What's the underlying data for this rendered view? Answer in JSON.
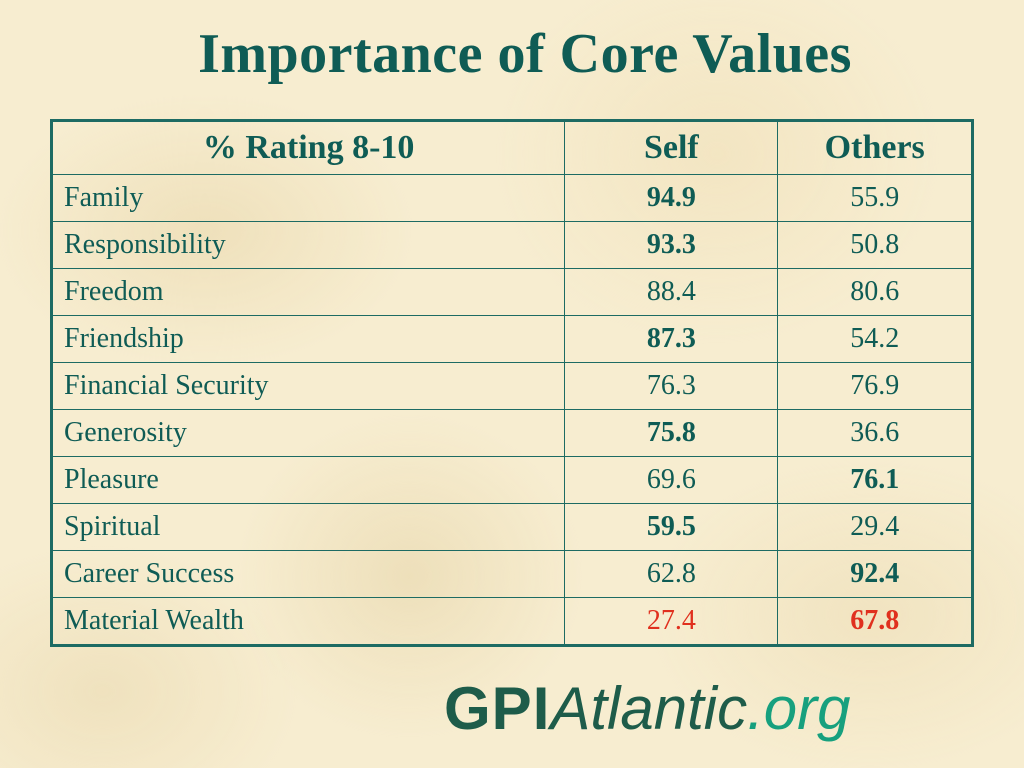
{
  "title": "Importance of Core Values",
  "table": {
    "headers": [
      "% Rating 8-10",
      "Self",
      "Others"
    ],
    "rows": [
      {
        "label": "Family",
        "self": "94.9",
        "others": "55.9",
        "self_bold": true,
        "others_bold": false
      },
      {
        "label": "Responsibility",
        "self": "93.3",
        "others": "50.8",
        "self_bold": true,
        "others_bold": false
      },
      {
        "label": "Freedom",
        "self": "88.4",
        "others": "80.6",
        "self_bold": false,
        "others_bold": false
      },
      {
        "label": "Friendship",
        "self": "87.3",
        "others": "54.2",
        "self_bold": true,
        "others_bold": false
      },
      {
        "label": "Financial Security",
        "self": "76.3",
        "others": "76.9",
        "self_bold": false,
        "others_bold": false
      },
      {
        "label": "Generosity",
        "self": "75.8",
        "others": "36.6",
        "self_bold": true,
        "others_bold": false
      },
      {
        "label": "Pleasure",
        "self": "69.6",
        "others": "76.1",
        "self_bold": false,
        "others_bold": true
      },
      {
        "label": "Spiritual",
        "self": "59.5",
        "others": "29.4",
        "self_bold": true,
        "others_bold": false
      },
      {
        "label": "Career Success",
        "self": "62.8",
        "others": "92.4",
        "self_bold": false,
        "others_bold": true
      },
      {
        "label": "Material Wealth",
        "self": "27.4",
        "others": "67.8",
        "self_bold": false,
        "others_bold": true,
        "highlight_color": "#e0301e"
      }
    ]
  },
  "logo": {
    "part1": "GPI",
    "part2": "Atlantic",
    "part3": ".org"
  },
  "colors": {
    "text": "#0f5c55",
    "border": "#1d6b63",
    "highlight": "#e0301e",
    "logo_green": "#1e5c4a",
    "logo_light": "#17a07e"
  }
}
